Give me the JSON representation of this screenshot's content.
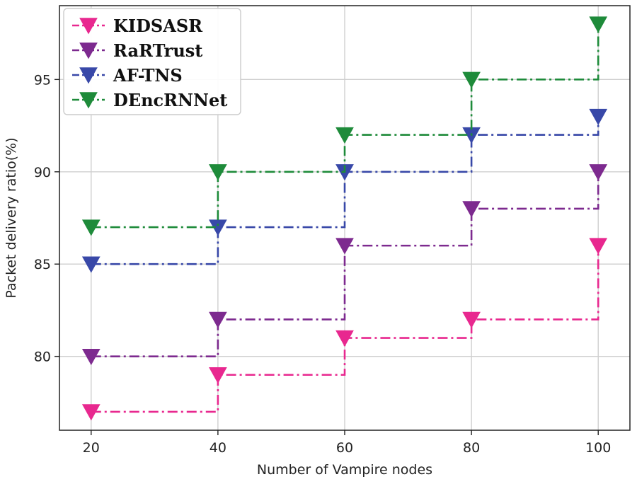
{
  "chart_data": {
    "type": "line",
    "step": true,
    "xlabel": "Number of Vampire nodes",
    "ylabel": "Packet delivery ratio(%)",
    "x": [
      20,
      40,
      60,
      80,
      100
    ],
    "xticks": [
      "20",
      "40",
      "60",
      "80",
      "100"
    ],
    "yticks": [
      "80",
      "85",
      "90",
      "95"
    ],
    "xlim": [
      15,
      105
    ],
    "ylim": [
      76,
      99
    ],
    "grid": true,
    "legend_position": "top-left",
    "marker": "down-triangle",
    "line_style": "dash-dot",
    "series": [
      {
        "name": "KIDSASR",
        "color": "#e8288f",
        "values": [
          77,
          79,
          81,
          82,
          86
        ]
      },
      {
        "name": "RaRTrust",
        "color": "#7d2a8f",
        "values": [
          80,
          82,
          86,
          88,
          90
        ]
      },
      {
        "name": "AF-TNS",
        "color": "#3848a8",
        "values": [
          85,
          87,
          90,
          92,
          93
        ]
      },
      {
        "name": "DEncRNNet",
        "color": "#1e8b3a",
        "values": [
          87,
          90,
          92,
          95,
          98
        ]
      }
    ]
  }
}
